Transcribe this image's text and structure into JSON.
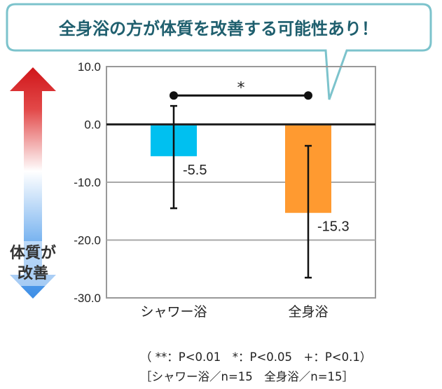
{
  "callout": "全身浴の方が体質を改善する可能性あり！",
  "side_label": [
    "体質が",
    "改善"
  ],
  "chart_data": {
    "type": "bar",
    "categories": [
      "シャワー浴",
      "全身浴"
    ],
    "values": [
      -5.5,
      -15.3
    ],
    "value_labels": [
      "-5.5",
      "-15.3"
    ],
    "error_bars": [
      [
        -14.5,
        3.2
      ],
      [
        -26.5,
        -3.7
      ]
    ],
    "bar_colors": [
      "#00c0f0",
      "#ff9a30"
    ],
    "ylim": [
      -30,
      10
    ],
    "yticks": [
      "10.0",
      "0.0",
      "-10.0",
      "-20.0",
      "-30.0"
    ],
    "ytick_values": [
      10,
      0,
      -10,
      -20,
      -30
    ],
    "significance": {
      "between": [
        "シャワー浴",
        "全身浴"
      ],
      "level_value": 5,
      "marker": "*"
    },
    "grid": true
  },
  "notes": {
    "line1": "（ **：P<0.01　*：P<0.05　+：P<0.1）",
    "line2": "［シャワー浴／n=15　全身浴／n=15］"
  }
}
